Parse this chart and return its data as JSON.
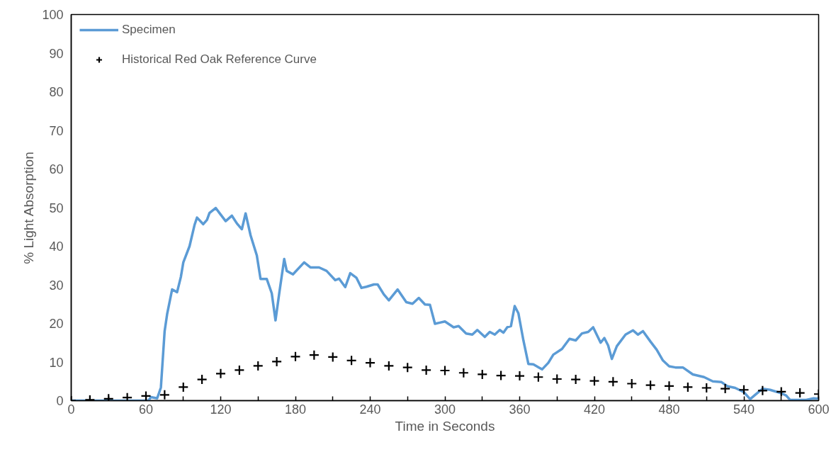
{
  "chart_data": {
    "type": "line",
    "xlabel": "Time in Seconds",
    "ylabel": "% Light Absorption",
    "xlim": [
      0,
      600
    ],
    "ylim": [
      0,
      100
    ],
    "xticks": [
      0,
      {
        "value": 30,
        "label": null
      },
      60,
      {
        "value": 90,
        "label": null
      },
      120,
      {
        "value": 150,
        "label": null
      },
      180,
      {
        "value": 210,
        "label": null
      },
      240,
      {
        "value": 270,
        "label": null
      },
      300,
      {
        "value": 330,
        "label": null
      },
      360,
      {
        "value": 390,
        "label": null
      },
      420,
      {
        "value": 450,
        "label": null
      },
      480,
      {
        "value": 510,
        "label": null
      },
      540,
      {
        "value": 570,
        "label": null
      },
      600
    ],
    "yticks": [
      0,
      10,
      20,
      30,
      40,
      50,
      60,
      70,
      80,
      90,
      100
    ],
    "grid": false,
    "legend": "top left",
    "series": [
      {
        "name": "Specimen",
        "color": "#5b9bd5",
        "marker": "none",
        "line_style": "solid",
        "x": [
          0,
          45,
          62,
          64,
          69,
          72,
          75,
          77,
          81,
          85,
          88,
          90,
          95,
          99,
          101,
          106,
          109,
          111,
          116,
          119,
          124,
          129,
          133,
          137,
          140,
          144,
          149,
          152,
          157,
          161,
          164,
          167,
          171,
          173,
          178,
          187,
          192,
          199,
          205,
          212,
          215,
          220,
          224,
          229,
          233,
          237,
          243,
          246,
          251,
          255,
          262,
          269,
          274,
          279,
          284,
          288,
          292,
          296,
          300,
          307,
          311,
          317,
          322,
          326,
          332,
          336,
          340,
          344,
          347,
          350,
          353,
          356,
          359,
          363,
          367,
          371,
          378,
          383,
          387,
          394,
          400,
          405,
          410,
          415,
          419,
          425,
          428,
          431,
          434,
          438,
          445,
          451,
          455,
          459,
          465,
          470,
          475,
          480,
          485,
          491,
          499,
          508,
          515,
          522,
          527,
          533,
          540,
          545,
          549,
          555,
          561,
          571,
          574,
          577,
          590,
          596,
          600
        ],
        "values": [
          0,
          0,
          0,
          0.9,
          0.6,
          3.4,
          18,
          22.4,
          28.8,
          28.1,
          32,
          35.8,
          40,
          45.5,
          47.4,
          45.7,
          46.8,
          48.6,
          49.9,
          48.6,
          46.5,
          47.9,
          45.9,
          44.4,
          48.5,
          42.8,
          37.6,
          31.5,
          31.5,
          27.8,
          20.8,
          27.8,
          36.7,
          33.6,
          32.7,
          35.8,
          34.5,
          34.5,
          33.6,
          31.2,
          31.6,
          29.4,
          33,
          31.8,
          29.2,
          29.5,
          30.1,
          30.1,
          27.5,
          26,
          28.8,
          25.5,
          25.1,
          26.6,
          24.9,
          24.8,
          19.9,
          20.2,
          20.5,
          19,
          19.3,
          17.4,
          17.1,
          18.3,
          16.5,
          17.8,
          17.1,
          18.3,
          17.6,
          19,
          19.3,
          24.5,
          22.6,
          15.6,
          9.5,
          9.4,
          8.1,
          9.8,
          11.9,
          13.4,
          16,
          15.6,
          17.4,
          17.8,
          19,
          15,
          16.2,
          14.3,
          10.8,
          14.1,
          17.1,
          18.2,
          17.1,
          18,
          15.3,
          13.2,
          10.4,
          8.9,
          8.6,
          8.6,
          6.8,
          6.1,
          5,
          4.8,
          3.7,
          3.3,
          2.2,
          0.4,
          1.5,
          3.1,
          2.8,
          1.8,
          1.3,
          0.2,
          0.2,
          0.6,
          0.5
        ]
      },
      {
        "name": "Historical Red Oak Reference Curve",
        "type": "scatter",
        "color": "#000000",
        "marker": "cross",
        "x": [
          0,
          15,
          30,
          45,
          60,
          75,
          90,
          105,
          120,
          135,
          150,
          165,
          180,
          195,
          210,
          225,
          240,
          255,
          270,
          285,
          300,
          315,
          330,
          345,
          360,
          375,
          390,
          405,
          420,
          435,
          450,
          465,
          480,
          495,
          510,
          525,
          540,
          555,
          570,
          585,
          600
        ],
        "values": [
          0,
          0.2,
          0.5,
          0.8,
          1.2,
          1.5,
          3.5,
          5.5,
          7.0,
          7.9,
          9.0,
          10.1,
          11.4,
          11.8,
          11.3,
          10.4,
          9.8,
          9.0,
          8.6,
          7.9,
          7.8,
          7.2,
          6.8,
          6.5,
          6.4,
          6.1,
          5.6,
          5.5,
          5.1,
          4.9,
          4.4,
          4.0,
          3.8,
          3.5,
          3.3,
          3.1,
          2.8,
          2.6,
          2.3,
          2.0,
          1.7
        ]
      }
    ]
  }
}
